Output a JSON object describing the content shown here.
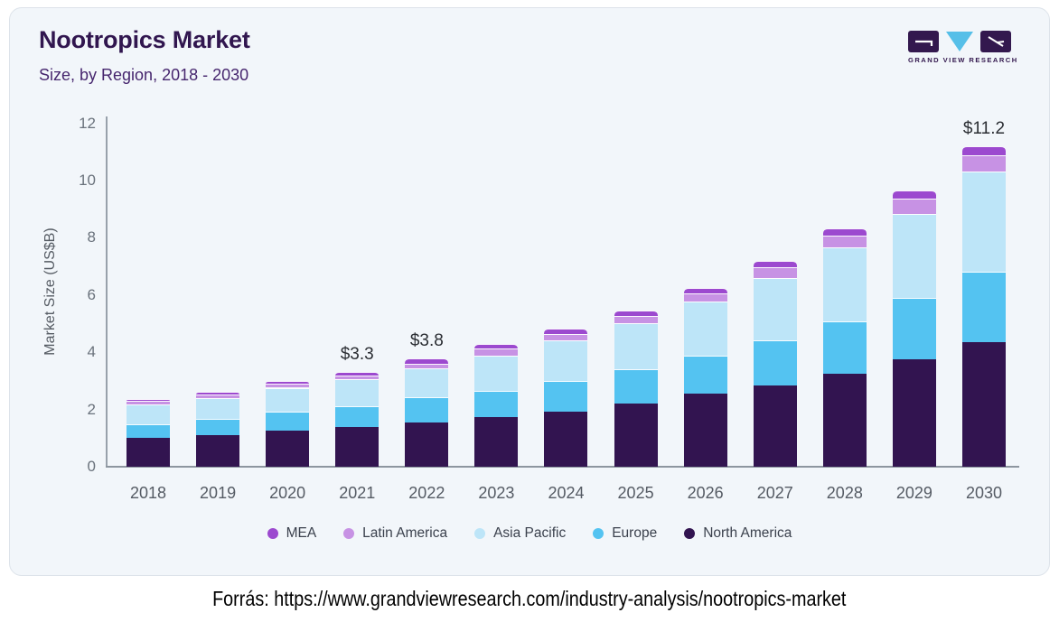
{
  "header": {
    "logo_text": "GRAND VIEW RESEARCH"
  },
  "caption": {
    "text": "Forrás: https://www.grandviewresearch.com/industry-analysis/nootropics-market"
  },
  "chart_data": {
    "type": "bar",
    "stacked": true,
    "title": "Nootropics Market",
    "subtitle": "Size, by Region, 2018 - 2030",
    "ylabel": "Market Size (US$B)",
    "ylim": [
      0,
      12
    ],
    "yticks": [
      0,
      2,
      4,
      6,
      8,
      10,
      12
    ],
    "grid": false,
    "legend_position": "bottom",
    "categories": [
      "2018",
      "2019",
      "2020",
      "2021",
      "2022",
      "2023",
      "2024",
      "2025",
      "2026",
      "2027",
      "2028",
      "2029",
      "2030"
    ],
    "series": [
      {
        "name": "MEA",
        "color": "#9c49cf",
        "values": [
          0.09,
          0.09,
          0.11,
          0.1,
          0.2,
          0.16,
          0.18,
          0.18,
          0.18,
          0.22,
          0.23,
          0.29,
          0.32
        ]
      },
      {
        "name": "Latin America",
        "color": "#c792e4",
        "values": [
          0.11,
          0.12,
          0.13,
          0.15,
          0.16,
          0.26,
          0.23,
          0.26,
          0.3,
          0.39,
          0.43,
          0.53,
          0.58
        ]
      },
      {
        "name": "Asia Pacific",
        "color": "#bde5f8",
        "values": [
          0.69,
          0.74,
          0.85,
          0.93,
          1.02,
          1.24,
          1.42,
          1.6,
          1.89,
          2.16,
          2.58,
          2.94,
          3.5
        ]
      },
      {
        "name": "Europe",
        "color": "#54c3f1",
        "values": [
          0.49,
          0.57,
          0.65,
          0.72,
          0.87,
          0.9,
          1.08,
          1.21,
          1.32,
          1.58,
          1.84,
          2.15,
          2.45
        ]
      },
      {
        "name": "North America",
        "color": "#321450",
        "values": [
          1.0,
          1.1,
          1.26,
          1.4,
          1.55,
          1.74,
          1.92,
          2.2,
          2.56,
          2.85,
          3.24,
          3.75,
          4.35
        ]
      }
    ],
    "stack_order_bottom_to_top": [
      "North America",
      "Europe",
      "Asia Pacific",
      "Latin America",
      "MEA"
    ],
    "annotations": [
      {
        "category": "2021",
        "label": "$3.3"
      },
      {
        "category": "2022",
        "label": "$3.8"
      },
      {
        "category": "2030",
        "label": "$11.2"
      }
    ]
  }
}
